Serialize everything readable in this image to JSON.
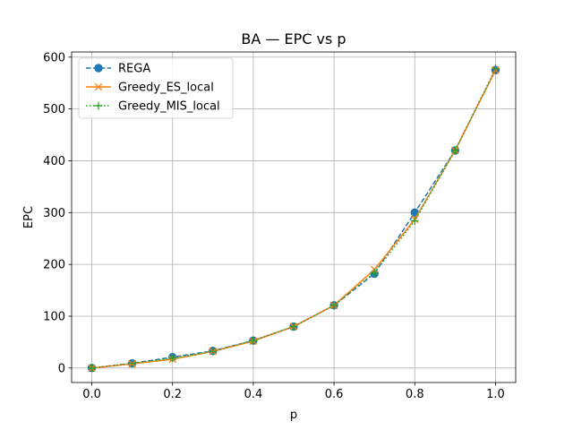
{
  "chart_data": {
    "type": "line",
    "title": "BA — EPC vs p",
    "xlabel": "p",
    "ylabel": "EPC",
    "xlim": [
      -0.05,
      1.05
    ],
    "ylim": [
      -28,
      610
    ],
    "x_ticks": [
      "0.0",
      "0.2",
      "0.4",
      "0.6",
      "0.8",
      "1.0"
    ],
    "y_ticks": [
      "0",
      "100",
      "200",
      "300",
      "400",
      "500",
      "600"
    ],
    "grid": true,
    "legend_position": "upper-left",
    "x": [
      0.0,
      0.1,
      0.2,
      0.3,
      0.4,
      0.5,
      0.6,
      0.7,
      0.8,
      0.9,
      1.0
    ],
    "series": [
      {
        "name": "REGA",
        "color": "#1f77b4",
        "linestyle": "dashed",
        "marker": "circle",
        "values": [
          0,
          9,
          21,
          33,
          53,
          80,
          121,
          182,
          300,
          420,
          575
        ]
      },
      {
        "name": "Greedy_ES_local",
        "color": "#ff7f0e",
        "linestyle": "solid",
        "marker": "x",
        "values": [
          0,
          8,
          17,
          32,
          52,
          80,
          121,
          190,
          287,
          420,
          575
        ]
      },
      {
        "name": "Greedy_MIS_local",
        "color": "#2ca02c",
        "linestyle": "dotted",
        "marker": "plus",
        "values": [
          0,
          9,
          19,
          32,
          53,
          80,
          121,
          184,
          284,
          420,
          578
        ]
      }
    ]
  }
}
